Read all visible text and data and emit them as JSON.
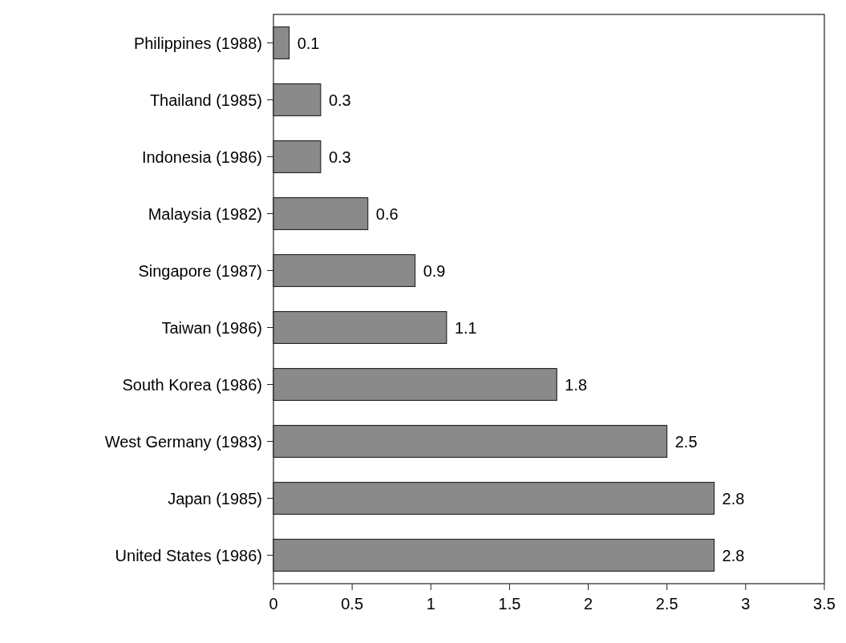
{
  "chart_data": {
    "type": "bar",
    "orientation": "horizontal",
    "categories": [
      "Philippines (1988)",
      "Thailand (1985)",
      "Indonesia (1986)",
      "Malaysia (1982)",
      "Singapore (1987)",
      "Taiwan (1986)",
      "South Korea (1986)",
      "West Germany (1983)",
      "Japan (1985)",
      "United States (1986)"
    ],
    "values": [
      0.1,
      0.3,
      0.3,
      0.6,
      0.9,
      1.1,
      1.8,
      2.5,
      2.8,
      2.8
    ],
    "color": "#8a8a8a",
    "xlim": [
      0,
      3.5
    ],
    "xticks": [
      0,
      0.5,
      1,
      1.5,
      2,
      2.5,
      3,
      3.5
    ],
    "data_labels": true
  }
}
